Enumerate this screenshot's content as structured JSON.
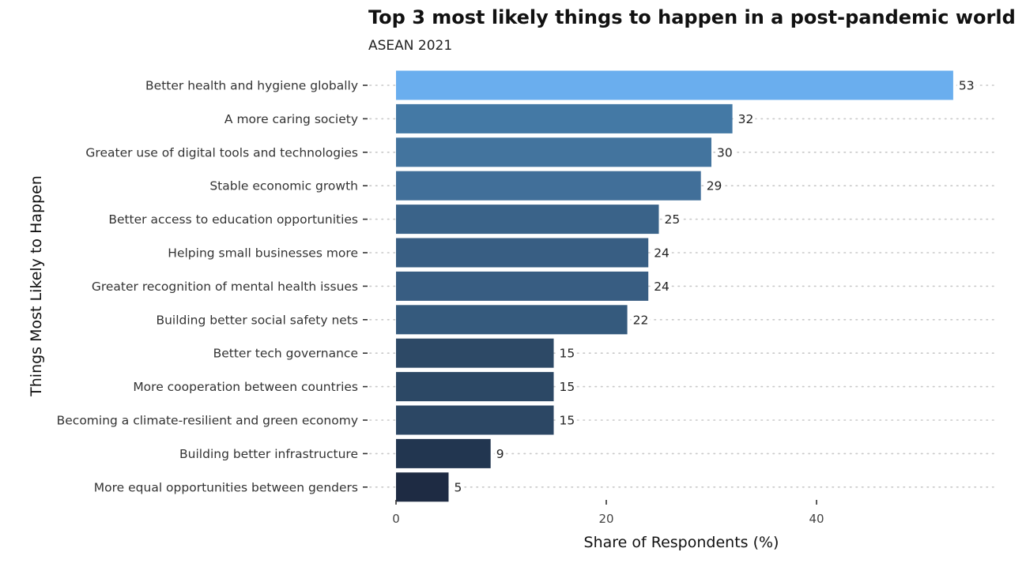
{
  "chart_data": {
    "type": "bar",
    "orientation": "horizontal",
    "title": "Top 3 most likely things to happen in a post-pandemic world",
    "subtitle": "ASEAN 2021",
    "xlabel": "Share of Respondents (%)",
    "ylabel": "Things Most Likely to Happen",
    "xlim": [
      0,
      57
    ],
    "xticks": [
      0,
      20,
      40
    ],
    "grid": "dotted horizontal",
    "categories": [
      "Better health and hygiene globally",
      "A more caring society",
      "Greater use of digital tools and technologies",
      "Stable economic growth",
      "Better access to education opportunities",
      "Helping small businesses more",
      "Greater recognition of mental health issues",
      "Building better social safety nets",
      "Better tech governance",
      "More cooperation between countries",
      "Becoming a climate-resilient and green economy",
      "Building better infrastructure",
      "More equal opportunities between genders"
    ],
    "values": [
      53,
      32,
      30,
      29,
      25,
      24,
      24,
      22,
      15,
      15,
      15,
      9,
      5
    ],
    "value_labels": [
      "53",
      "32",
      "30",
      "29",
      "25",
      "24",
      "24",
      "22",
      "15",
      "15",
      "15",
      "9",
      "5"
    ],
    "bar_colors": [
      "#6aaeee",
      "#4479a5",
      "#43749e",
      "#416f99",
      "#3a6389",
      "#385e83",
      "#385d82",
      "#355a7d",
      "#2d4966",
      "#2c4865",
      "#2c4764",
      "#223650",
      "#1e2b43"
    ],
    "colors": {
      "grid": "#c8c8c8",
      "tick": "#333333"
    }
  }
}
